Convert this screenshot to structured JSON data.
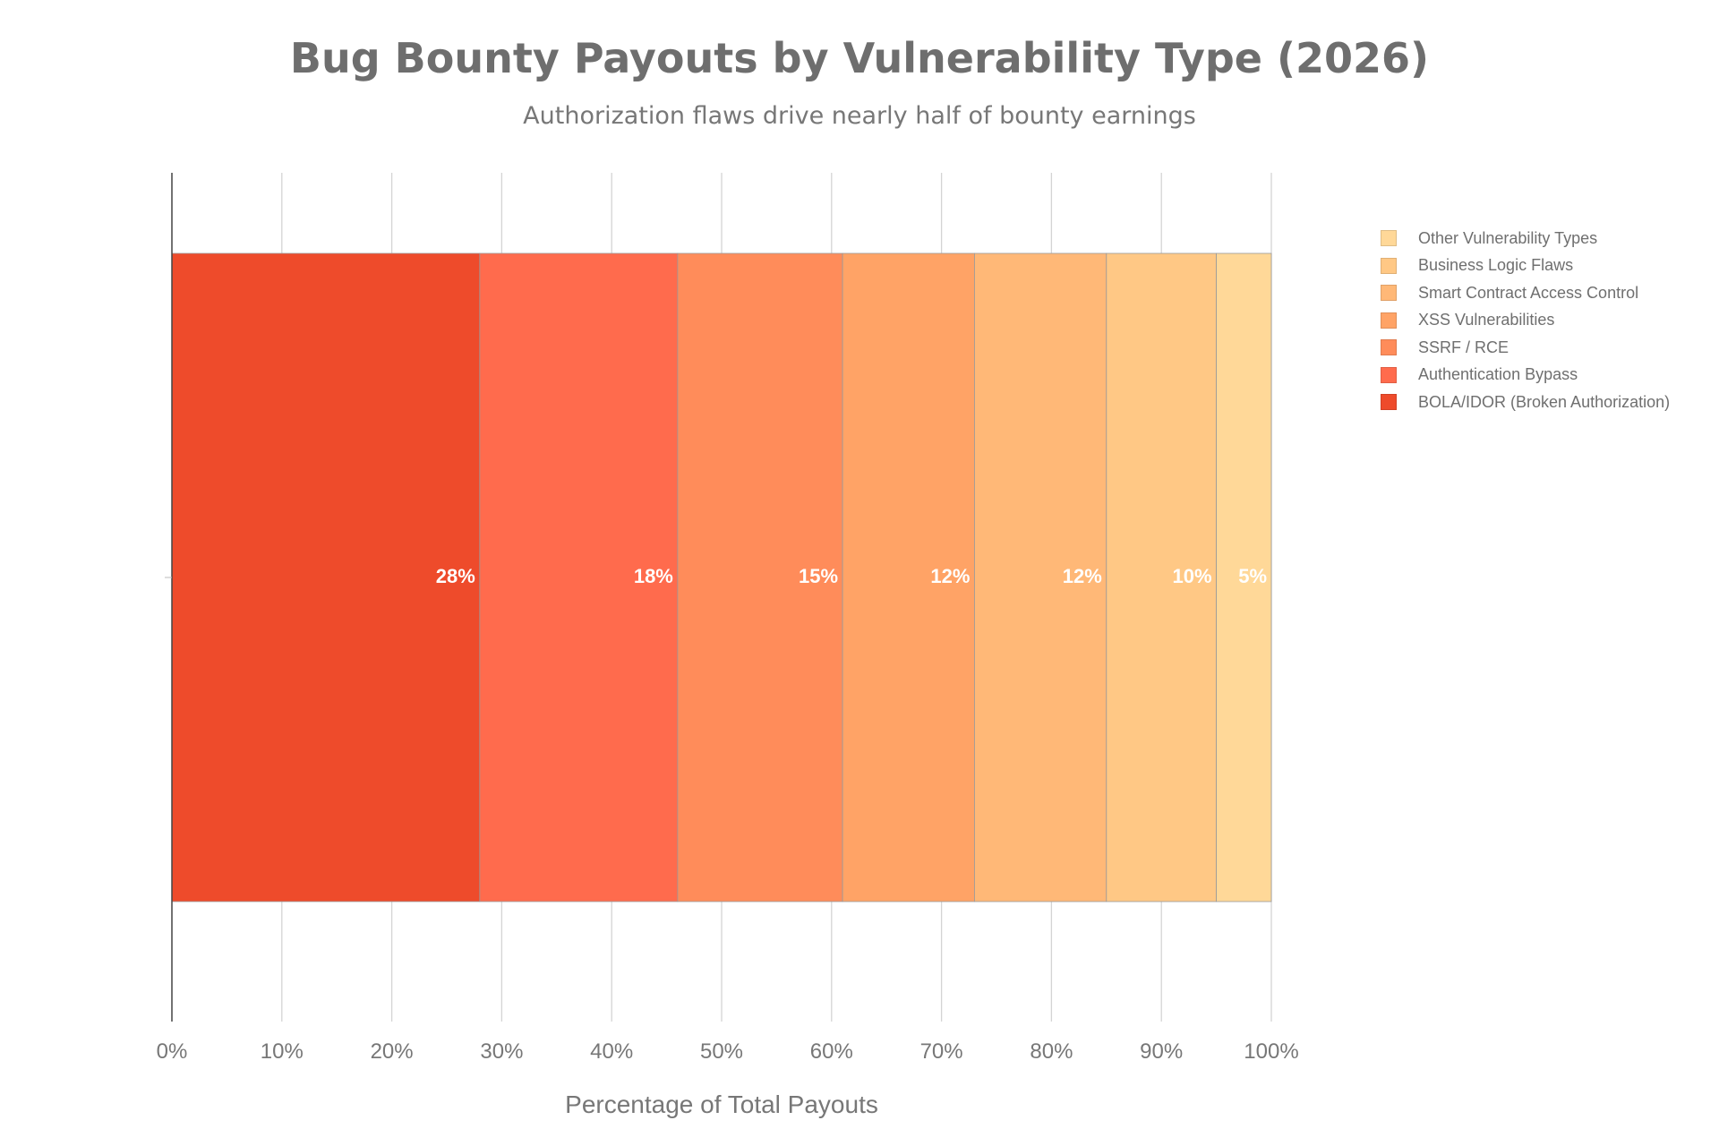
{
  "chart_data": {
    "type": "bar",
    "orientation": "horizontal",
    "stacked": true,
    "title": "Bug Bounty Payouts by Vulnerability Type (2026)",
    "subtitle": "Authorization flaws drive nearly half of bounty earnings",
    "xlabel": "Percentage of Total Payouts",
    "ylabel": "",
    "xlim": [
      0,
      100
    ],
    "x_ticks": [
      "0%",
      "10%",
      "20%",
      "30%",
      "40%",
      "50%",
      "60%",
      "70%",
      "80%",
      "90%",
      "100%"
    ],
    "grid": true,
    "legend_position": "right",
    "series": [
      {
        "name": "BOLA/IDOR (Broken Authorization)",
        "values": [
          28
        ],
        "label": "28%",
        "color": "#ee4b2b"
      },
      {
        "name": "Authentication Bypass",
        "values": [
          18
        ],
        "label": "18%",
        "color": "#ff6b4d"
      },
      {
        "name": "SSRF / RCE",
        "values": [
          15
        ],
        "label": "15%",
        "color": "#ff8c5a"
      },
      {
        "name": "XSS Vulnerabilities",
        "values": [
          12
        ],
        "label": "12%",
        "color": "#ffa366"
      },
      {
        "name": "Smart Contract Access Control",
        "values": [
          12
        ],
        "label": "12%",
        "color": "#ffb877"
      },
      {
        "name": "Business Logic Flaws",
        "values": [
          10
        ],
        "label": "10%",
        "color": "#ffc885"
      },
      {
        "name": "Other Vulnerability Types",
        "values": [
          5
        ],
        "label": "5%",
        "color": "#ffd898"
      }
    ]
  }
}
